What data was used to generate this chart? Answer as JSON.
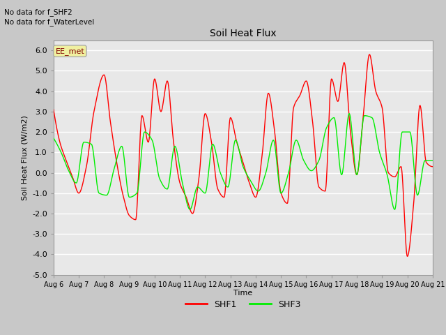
{
  "title": "Soil Heat Flux",
  "ylabel": "Soil Heat Flux (W/m2)",
  "xlabel": "Time",
  "annotation_lines": [
    "No data for f_SHF2",
    "No data for f_WaterLevel"
  ],
  "station_label": "EE_met",
  "ylim": [
    -5.0,
    6.5
  ],
  "yticks": [
    -5.0,
    -4.0,
    -3.0,
    -2.0,
    -1.0,
    0.0,
    1.0,
    2.0,
    3.0,
    4.0,
    5.0,
    6.0
  ],
  "xticklabels": [
    "Aug 6",
    "Aug 7",
    "Aug 8",
    "Aug 9",
    "Aug 10",
    "Aug 11",
    "Aug 12",
    "Aug 13",
    "Aug 14",
    "Aug 15",
    "Aug 16",
    "Aug 17",
    "Aug 18",
    "Aug 19",
    "Aug 20",
    "Aug 21"
  ],
  "shf1_color": "red",
  "shf3_color": "#00ee00",
  "legend_labels": [
    "SHF1",
    "SHF3"
  ],
  "shf1_knots_x": [
    0.0,
    0.25,
    0.5,
    0.75,
    1.0,
    1.3,
    1.6,
    2.0,
    2.25,
    2.5,
    2.75,
    3.0,
    3.25,
    3.5,
    3.75,
    4.0,
    4.25,
    4.5,
    4.75,
    5.0,
    5.25,
    5.5,
    5.75,
    6.0,
    6.25,
    6.5,
    6.75,
    7.0,
    7.25,
    7.5,
    7.75,
    8.0,
    8.25,
    8.5,
    8.75,
    9.0,
    9.25,
    9.5,
    9.75,
    10.0,
    10.25,
    10.5,
    10.75,
    11.0,
    11.25,
    11.5,
    11.75,
    12.0,
    12.25,
    12.5,
    12.75,
    13.0,
    13.25,
    13.5,
    13.75,
    14.0,
    14.25,
    14.5,
    14.75,
    15.0
  ],
  "shf1_knots_y": [
    3.1,
    1.5,
    0.6,
    -0.2,
    -1.0,
    0.3,
    3.0,
    4.8,
    2.5,
    0.5,
    -1.1,
    -2.1,
    -2.3,
    2.8,
    1.5,
    4.6,
    3.0,
    4.5,
    1.5,
    -0.5,
    -1.2,
    -2.0,
    -0.3,
    2.9,
    1.5,
    -0.8,
    -1.2,
    2.7,
    1.5,
    0.5,
    -0.5,
    -1.2,
    0.8,
    3.9,
    2.0,
    -1.0,
    -1.5,
    3.2,
    3.8,
    4.5,
    2.5,
    -0.7,
    -0.9,
    4.6,
    3.5,
    5.4,
    2.0,
    -0.1,
    2.7,
    5.8,
    4.0,
    3.2,
    0.0,
    -0.2,
    0.3,
    -4.1,
    -1.5,
    3.3,
    0.5,
    0.3
  ],
  "shf3_knots_x": [
    0.0,
    0.3,
    0.6,
    0.9,
    1.2,
    1.5,
    1.8,
    2.1,
    2.4,
    2.7,
    3.0,
    3.3,
    3.6,
    3.9,
    4.2,
    4.5,
    4.8,
    5.1,
    5.4,
    5.7,
    6.0,
    6.3,
    6.6,
    6.9,
    7.2,
    7.5,
    7.8,
    8.1,
    8.4,
    8.7,
    9.0,
    9.3,
    9.6,
    9.9,
    10.2,
    10.5,
    10.8,
    11.1,
    11.4,
    11.7,
    12.0,
    12.3,
    12.6,
    12.9,
    13.2,
    13.5,
    13.8,
    14.1,
    14.4,
    14.7,
    15.0
  ],
  "shf3_knots_y": [
    1.7,
    1.0,
    0.1,
    -0.5,
    1.5,
    1.4,
    -1.0,
    -1.1,
    0.2,
    1.3,
    -1.2,
    -1.0,
    2.0,
    1.6,
    -0.3,
    -0.8,
    1.3,
    -0.5,
    -1.8,
    -0.7,
    -1.0,
    1.4,
    0.0,
    -0.7,
    1.6,
    0.3,
    -0.4,
    -0.9,
    0.0,
    1.6,
    -1.0,
    0.0,
    1.6,
    0.6,
    0.1,
    0.6,
    2.2,
    2.7,
    -0.1,
    2.9,
    -0.1,
    2.8,
    2.7,
    1.0,
    -0.1,
    -1.8,
    2.0,
    2.0,
    -1.1,
    0.6,
    0.6
  ]
}
